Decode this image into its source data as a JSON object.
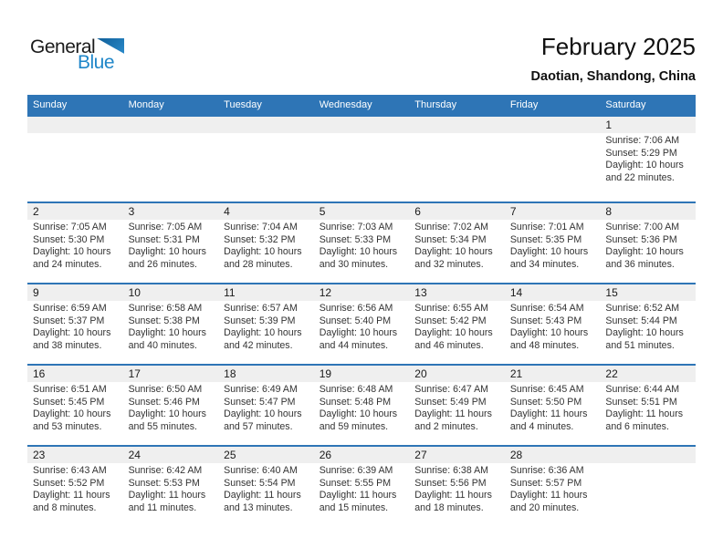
{
  "logo": {
    "line1": "General",
    "line2": "Blue"
  },
  "header": {
    "title": "February 2025",
    "subtitle": "Daotian, Shandong, China"
  },
  "weekday_headers": [
    "Sunday",
    "Monday",
    "Tuesday",
    "Wednesday",
    "Thursday",
    "Friday",
    "Saturday"
  ],
  "weeks": [
    [
      null,
      null,
      null,
      null,
      null,
      null,
      {
        "day": "1",
        "sunrise": "Sunrise: 7:06 AM",
        "sunset": "Sunset: 5:29 PM",
        "daylight": "Daylight: 10 hours and 22 minutes."
      }
    ],
    [
      {
        "day": "2",
        "sunrise": "Sunrise: 7:05 AM",
        "sunset": "Sunset: 5:30 PM",
        "daylight": "Daylight: 10 hours and 24 minutes."
      },
      {
        "day": "3",
        "sunrise": "Sunrise: 7:05 AM",
        "sunset": "Sunset: 5:31 PM",
        "daylight": "Daylight: 10 hours and 26 minutes."
      },
      {
        "day": "4",
        "sunrise": "Sunrise: 7:04 AM",
        "sunset": "Sunset: 5:32 PM",
        "daylight": "Daylight: 10 hours and 28 minutes."
      },
      {
        "day": "5",
        "sunrise": "Sunrise: 7:03 AM",
        "sunset": "Sunset: 5:33 PM",
        "daylight": "Daylight: 10 hours and 30 minutes."
      },
      {
        "day": "6",
        "sunrise": "Sunrise: 7:02 AM",
        "sunset": "Sunset: 5:34 PM",
        "daylight": "Daylight: 10 hours and 32 minutes."
      },
      {
        "day": "7",
        "sunrise": "Sunrise: 7:01 AM",
        "sunset": "Sunset: 5:35 PM",
        "daylight": "Daylight: 10 hours and 34 minutes."
      },
      {
        "day": "8",
        "sunrise": "Sunrise: 7:00 AM",
        "sunset": "Sunset: 5:36 PM",
        "daylight": "Daylight: 10 hours and 36 minutes."
      }
    ],
    [
      {
        "day": "9",
        "sunrise": "Sunrise: 6:59 AM",
        "sunset": "Sunset: 5:37 PM",
        "daylight": "Daylight: 10 hours and 38 minutes."
      },
      {
        "day": "10",
        "sunrise": "Sunrise: 6:58 AM",
        "sunset": "Sunset: 5:38 PM",
        "daylight": "Daylight: 10 hours and 40 minutes."
      },
      {
        "day": "11",
        "sunrise": "Sunrise: 6:57 AM",
        "sunset": "Sunset: 5:39 PM",
        "daylight": "Daylight: 10 hours and 42 minutes."
      },
      {
        "day": "12",
        "sunrise": "Sunrise: 6:56 AM",
        "sunset": "Sunset: 5:40 PM",
        "daylight": "Daylight: 10 hours and 44 minutes."
      },
      {
        "day": "13",
        "sunrise": "Sunrise: 6:55 AM",
        "sunset": "Sunset: 5:42 PM",
        "daylight": "Daylight: 10 hours and 46 minutes."
      },
      {
        "day": "14",
        "sunrise": "Sunrise: 6:54 AM",
        "sunset": "Sunset: 5:43 PM",
        "daylight": "Daylight: 10 hours and 48 minutes."
      },
      {
        "day": "15",
        "sunrise": "Sunrise: 6:52 AM",
        "sunset": "Sunset: 5:44 PM",
        "daylight": "Daylight: 10 hours and 51 minutes."
      }
    ],
    [
      {
        "day": "16",
        "sunrise": "Sunrise: 6:51 AM",
        "sunset": "Sunset: 5:45 PM",
        "daylight": "Daylight: 10 hours and 53 minutes."
      },
      {
        "day": "17",
        "sunrise": "Sunrise: 6:50 AM",
        "sunset": "Sunset: 5:46 PM",
        "daylight": "Daylight: 10 hours and 55 minutes."
      },
      {
        "day": "18",
        "sunrise": "Sunrise: 6:49 AM",
        "sunset": "Sunset: 5:47 PM",
        "daylight": "Daylight: 10 hours and 57 minutes."
      },
      {
        "day": "19",
        "sunrise": "Sunrise: 6:48 AM",
        "sunset": "Sunset: 5:48 PM",
        "daylight": "Daylight: 10 hours and 59 minutes."
      },
      {
        "day": "20",
        "sunrise": "Sunrise: 6:47 AM",
        "sunset": "Sunset: 5:49 PM",
        "daylight": "Daylight: 11 hours and 2 minutes."
      },
      {
        "day": "21",
        "sunrise": "Sunrise: 6:45 AM",
        "sunset": "Sunset: 5:50 PM",
        "daylight": "Daylight: 11 hours and 4 minutes."
      },
      {
        "day": "22",
        "sunrise": "Sunrise: 6:44 AM",
        "sunset": "Sunset: 5:51 PM",
        "daylight": "Daylight: 11 hours and 6 minutes."
      }
    ],
    [
      {
        "day": "23",
        "sunrise": "Sunrise: 6:43 AM",
        "sunset": "Sunset: 5:52 PM",
        "daylight": "Daylight: 11 hours and 8 minutes."
      },
      {
        "day": "24",
        "sunrise": "Sunrise: 6:42 AM",
        "sunset": "Sunset: 5:53 PM",
        "daylight": "Daylight: 11 hours and 11 minutes."
      },
      {
        "day": "25",
        "sunrise": "Sunrise: 6:40 AM",
        "sunset": "Sunset: 5:54 PM",
        "daylight": "Daylight: 11 hours and 13 minutes."
      },
      {
        "day": "26",
        "sunrise": "Sunrise: 6:39 AM",
        "sunset": "Sunset: 5:55 PM",
        "daylight": "Daylight: 11 hours and 15 minutes."
      },
      {
        "day": "27",
        "sunrise": "Sunrise: 6:38 AM",
        "sunset": "Sunset: 5:56 PM",
        "daylight": "Daylight: 11 hours and 18 minutes."
      },
      {
        "day": "28",
        "sunrise": "Sunrise: 6:36 AM",
        "sunset": "Sunset: 5:57 PM",
        "daylight": "Daylight: 11 hours and 20 minutes."
      },
      null
    ]
  ],
  "colors": {
    "header_blue": "#2e75b6",
    "separator_blue": "#2e75b6",
    "number_band_gray": "#efefef",
    "logo_blue": "#2087c9",
    "logo_black": "#1b1b1b"
  }
}
